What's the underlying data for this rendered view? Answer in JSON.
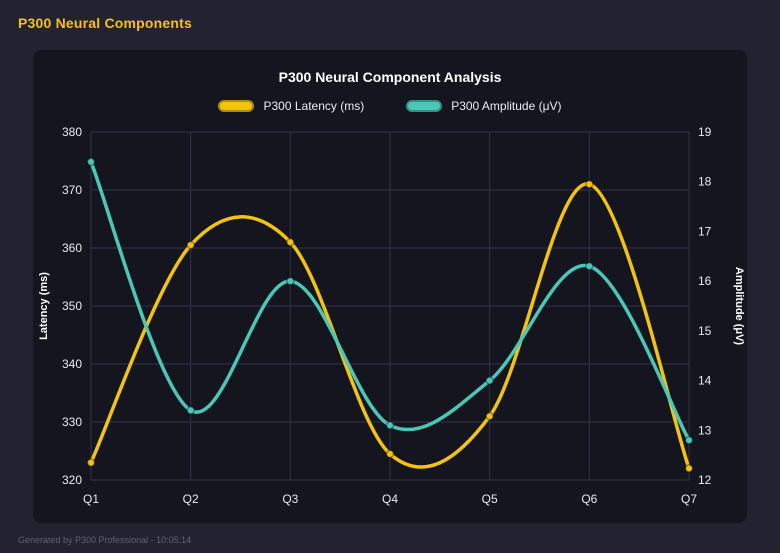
{
  "page": {
    "title": "P300 Neural Components",
    "footer": "Generated by P300 Professional - 10:05:14"
  },
  "chart_data": {
    "type": "line",
    "title": "P300 Neural Component Analysis",
    "categories": [
      "Q1",
      "Q2",
      "Q3",
      "Q4",
      "Q5",
      "Q6",
      "Q7"
    ],
    "series": [
      {
        "name": "P300 Latency (ms)",
        "axis": "left",
        "color": "#f2c40f",
        "values": [
          323,
          360.5,
          361,
          324.5,
          331,
          371,
          322
        ]
      },
      {
        "name": "P300 Amplitude (μV)",
        "axis": "right",
        "color": "#4ac7b7",
        "values": [
          18.4,
          13.4,
          16.0,
          13.1,
          14.0,
          16.3,
          12.8
        ]
      }
    ],
    "left_axis": {
      "label": "Latency (ms)",
      "min": 320,
      "max": 380,
      "ticks": [
        320,
        330,
        340,
        350,
        360,
        370,
        380
      ]
    },
    "right_axis": {
      "label": "Amplitude (μV)",
      "min": 12,
      "max": 19,
      "ticks": [
        12,
        13,
        14,
        15,
        16,
        17,
        18,
        19
      ]
    },
    "grid": true,
    "legend_position": "top",
    "curve": "smooth"
  },
  "colors": {
    "background": "#222230",
    "card": "#15151f",
    "grid": "#32324a",
    "text": "#ffffff",
    "tick_text": "#e9e9f0",
    "muted": "#63636f",
    "accent_yellow": "#f2c40f",
    "accent_teal": "#4ac7b7"
  }
}
